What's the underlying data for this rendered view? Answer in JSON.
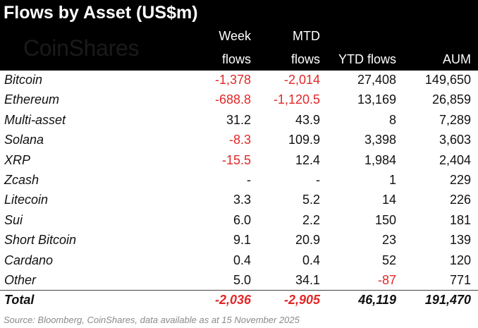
{
  "title": "Flows by Asset (US$m)",
  "logo_text": "CoinShares",
  "headers": {
    "week_line1": "Week",
    "week_line2": "flows",
    "mtd_line1": "MTD",
    "mtd_line2": "flows",
    "ytd": "YTD flows",
    "aum": "AUM"
  },
  "colors": {
    "header_bg": "#000000",
    "negative": "#e12727",
    "text": "#111111"
  },
  "rows": [
    {
      "asset": "Bitcoin",
      "week": "-1,378",
      "mtd": "-2,014",
      "ytd": "27,408",
      "aum": "149,650"
    },
    {
      "asset": "Ethereum",
      "week": "-688.8",
      "mtd": "-1,120.5",
      "ytd": "13,169",
      "aum": "26,859"
    },
    {
      "asset": "Multi-asset",
      "week": "31.2",
      "mtd": "43.9",
      "ytd": "8",
      "aum": "7,289"
    },
    {
      "asset": "Solana",
      "week": "-8.3",
      "mtd": "109.9",
      "ytd": "3,398",
      "aum": "3,603"
    },
    {
      "asset": "XRP",
      "week": "-15.5",
      "mtd": "12.4",
      "ytd": "1,984",
      "aum": "2,404"
    },
    {
      "asset": "Zcash",
      "week": "-",
      "mtd": "-",
      "ytd": "1",
      "aum": "229"
    },
    {
      "asset": "Litecoin",
      "week": "3.3",
      "mtd": "5.2",
      "ytd": "14",
      "aum": "226"
    },
    {
      "asset": "Sui",
      "week": "6.0",
      "mtd": "2.2",
      "ytd": "150",
      "aum": "181"
    },
    {
      "asset": "Short Bitcoin",
      "week": "9.1",
      "mtd": "20.9",
      "ytd": "23",
      "aum": "139"
    },
    {
      "asset": "Cardano",
      "week": "0.4",
      "mtd": "0.4",
      "ytd": "52",
      "aum": "120"
    },
    {
      "asset": "Other",
      "week": "5.0",
      "mtd": "34.1",
      "ytd": "-87",
      "aum": "771"
    }
  ],
  "total": {
    "label": "Total",
    "week": "-2,036",
    "mtd": "-2,905",
    "ytd": "46,119",
    "aum": "191,470"
  },
  "source": "Source: Bloomberg, CoinShares, data available as at 15 November 2025",
  "chart_data": {
    "type": "table",
    "title": "Flows by Asset (US$m)",
    "columns": [
      "Week flows",
      "MTD flows",
      "YTD flows",
      "AUM"
    ],
    "rows": [
      [
        "Bitcoin",
        "-1,378",
        "-2,014",
        "27,408",
        "149,650"
      ],
      [
        "Ethereum",
        "-688.8",
        "-1,120.5",
        "13,169",
        "26,859"
      ],
      [
        "Multi-asset",
        "31.2",
        "43.9",
        "8",
        "7,289"
      ],
      [
        "Solana",
        "-8.3",
        "109.9",
        "3,398",
        "3,603"
      ],
      [
        "XRP",
        "-15.5",
        "12.4",
        "1,984",
        "2,404"
      ],
      [
        "Zcash",
        "-",
        "-",
        "1",
        "229"
      ],
      [
        "Litecoin",
        "3.3",
        "5.2",
        "14",
        "226"
      ],
      [
        "Sui",
        "6.0",
        "2.2",
        "150",
        "181"
      ],
      [
        "Short Bitcoin",
        "9.1",
        "20.9",
        "23",
        "139"
      ],
      [
        "Cardano",
        "0.4",
        "0.4",
        "52",
        "120"
      ],
      [
        "Other",
        "5.0",
        "34.1",
        "-87",
        "771"
      ]
    ],
    "total": [
      "Total",
      "-2,036",
      "-2,905",
      "46,119",
      "191,470"
    ]
  }
}
